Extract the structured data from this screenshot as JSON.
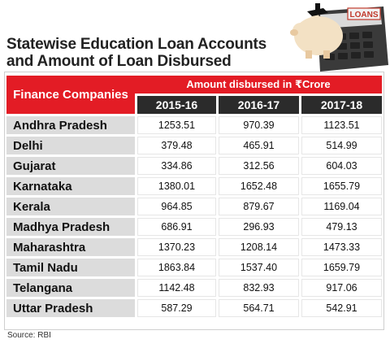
{
  "title_line1": "Statewise Education Loan Accounts",
  "title_line2": "and Amount of Loan Disbursed",
  "art_label": "LOANS",
  "source": "Source: RBI",
  "colors": {
    "accent_red": "#e31c25",
    "header_dark": "#2b2b2b",
    "row_label_bg": "#dcdcdc"
  },
  "chart_data": {
    "type": "table",
    "corner_header": "Finance Companies",
    "group_header": "Amount disbursed in ₹Crore",
    "columns": [
      "2015-16",
      "2016-17",
      "2017-18"
    ],
    "rows": [
      {
        "label": "Andhra Pradesh",
        "values": [
          "1253.51",
          "970.39",
          "1123.51"
        ]
      },
      {
        "label": "Delhi",
        "values": [
          "379.48",
          "465.91",
          "514.99"
        ]
      },
      {
        "label": "Gujarat",
        "values": [
          "334.86",
          "312.56",
          "604.03"
        ]
      },
      {
        "label": "Karnataka",
        "values": [
          "1380.01",
          "1652.48",
          "1655.79"
        ]
      },
      {
        "label": "Kerala",
        "values": [
          "964.85",
          "879.67",
          "1169.04"
        ]
      },
      {
        "label": "Madhya Pradesh",
        "values": [
          "686.91",
          "296.93",
          "479.13"
        ]
      },
      {
        "label": "Maharashtra",
        "values": [
          "1370.23",
          "1208.14",
          "1473.33"
        ]
      },
      {
        "label": "Tamil Nadu",
        "values": [
          "1863.84",
          "1537.40",
          "1659.79"
        ]
      },
      {
        "label": "Telangana",
        "values": [
          "1142.48",
          "832.93",
          "917.06"
        ]
      },
      {
        "label": "Uttar Pradesh",
        "values": [
          "587.29",
          "564.71",
          "542.91"
        ]
      }
    ]
  }
}
